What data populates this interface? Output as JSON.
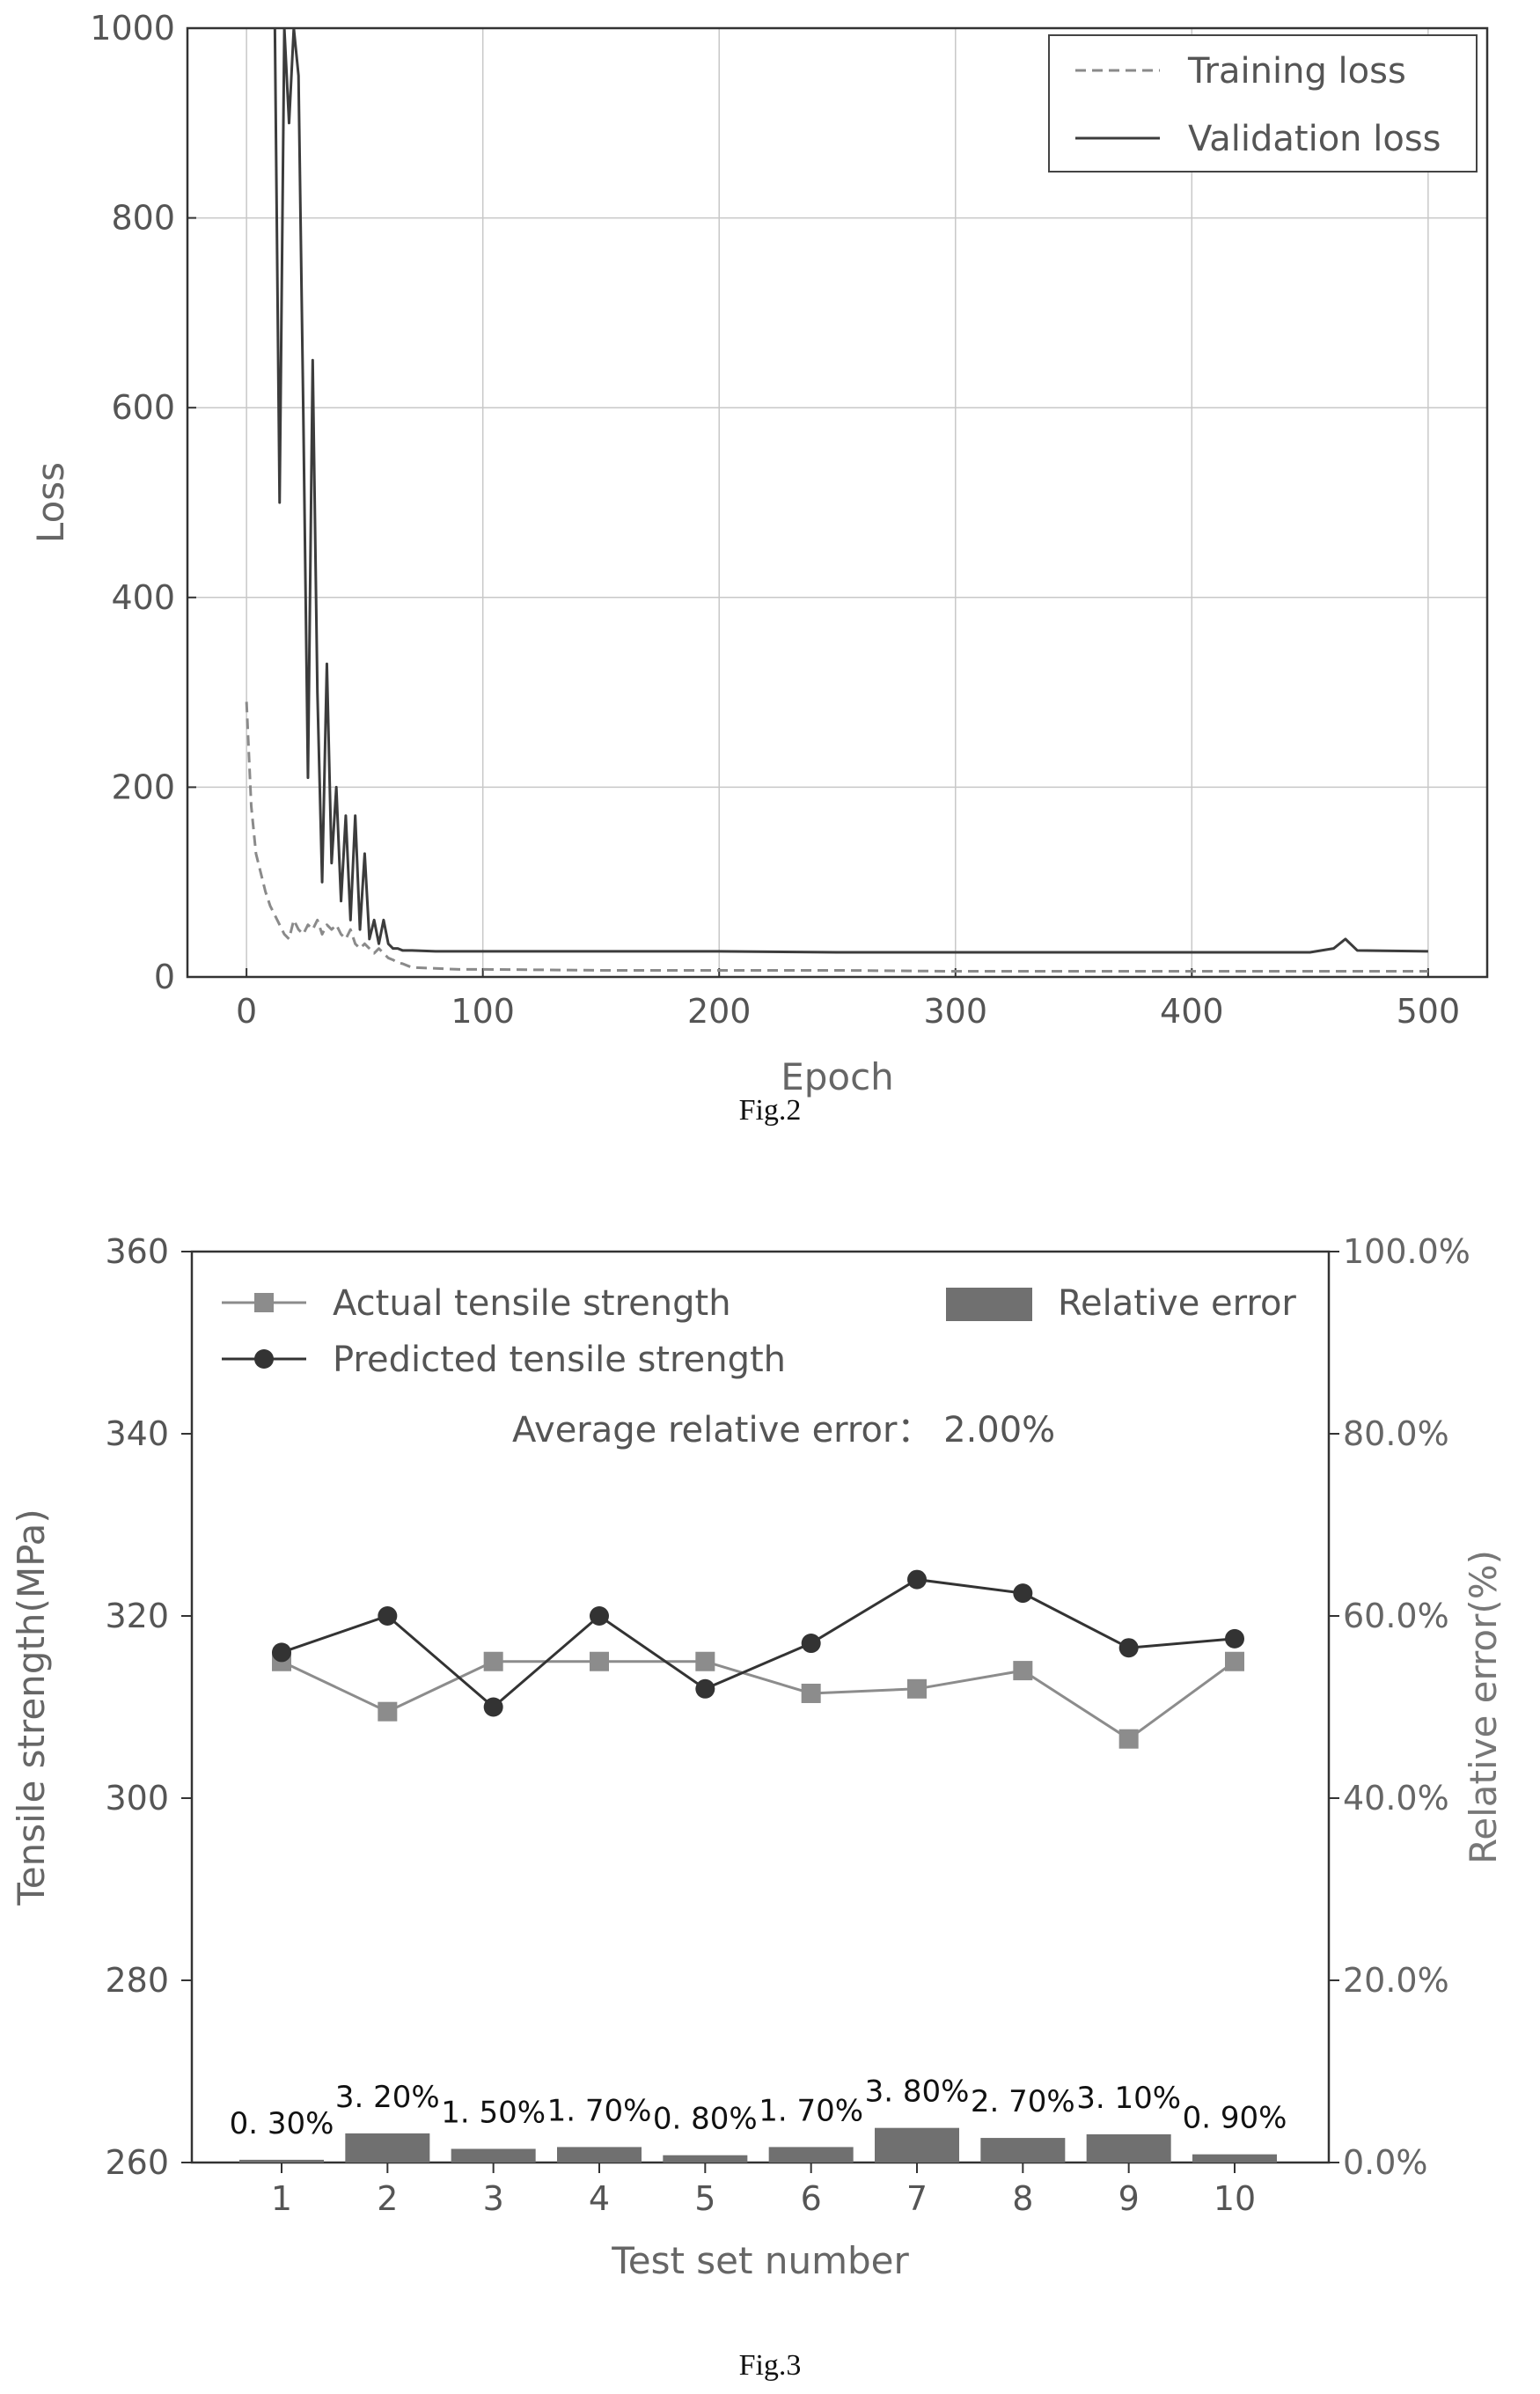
{
  "figures": [
    {
      "caption": "Fig.2",
      "chart_data": {
        "type": "line",
        "xlabel": "Epoch",
        "ylabel": "Loss",
        "xlim": [
          -25,
          525
        ],
        "ylim": [
          0,
          1000
        ],
        "xticks": [
          "0",
          "100",
          "200",
          "300",
          "400",
          "500"
        ],
        "yticks": [
          "0",
          "200",
          "400",
          "600",
          "800",
          "1000"
        ],
        "grid": true,
        "legend_position": "top-right",
        "series": [
          {
            "name": "Training loss",
            "style": "dashed",
            "color": "#8a8a8a",
            "x": [
              0,
              2,
              4,
              6,
              8,
              10,
              12,
              14,
              16,
              18,
              20,
              22,
              24,
              26,
              28,
              30,
              32,
              34,
              36,
              38,
              40,
              42,
              44,
              46,
              48,
              50,
              52,
              54,
              56,
              58,
              60,
              62,
              64,
              66,
              68,
              70,
              80,
              90,
              100,
              150,
              200,
              250,
              300,
              350,
              400,
              450,
              500
            ],
            "y": [
              290,
              180,
              130,
              110,
              90,
              75,
              65,
              55,
              45,
              40,
              60,
              50,
              45,
              55,
              50,
              60,
              45,
              55,
              50,
              55,
              45,
              40,
              50,
              35,
              30,
              35,
              30,
              25,
              30,
              25,
              20,
              18,
              15,
              14,
              12,
              10,
              9,
              8,
              8,
              7,
              7,
              7,
              6,
              6,
              6,
              6,
              6
            ]
          },
          {
            "name": "Validation loss",
            "style": "solid",
            "color": "#3c3c3c",
            "x": [
              12,
              14,
              16,
              18,
              20,
              22,
              24,
              26,
              28,
              30,
              32,
              34,
              36,
              38,
              40,
              42,
              44,
              46,
              48,
              50,
              52,
              54,
              56,
              58,
              60,
              62,
              64,
              66,
              68,
              70,
              80,
              90,
              100,
              150,
              200,
              250,
              300,
              350,
              400,
              450,
              460,
              465,
              470,
              500
            ],
            "y": [
              1000,
              500,
              1000,
              900,
              1000,
              950,
              600,
              210,
              650,
              300,
              100,
              330,
              120,
              200,
              80,
              170,
              60,
              170,
              50,
              130,
              40,
              60,
              35,
              60,
              35,
              30,
              30,
              28,
              28,
              28,
              27,
              27,
              27,
              27,
              27,
              26,
              26,
              26,
              26,
              26,
              30,
              40,
              28,
              27
            ]
          }
        ]
      }
    },
    {
      "caption": "Fig.3",
      "annotation": "Average relative error：  2.00%",
      "chart_data": {
        "type": "line",
        "xlabel": "Test set number",
        "ylabel": "Tensile strength(MPa)",
        "y2label": "Relative error(%)",
        "categories": [
          "1",
          "2",
          "3",
          "4",
          "5",
          "6",
          "7",
          "8",
          "9",
          "10"
        ],
        "ylim": [
          260,
          360
        ],
        "yticks": [
          "260",
          "280",
          "300",
          "320",
          "340",
          "360"
        ],
        "y2lim": [
          0,
          100
        ],
        "y2ticks": [
          "0.0%",
          "20.0%",
          "40.0%",
          "60.0%",
          "80.0%",
          "100.0%"
        ],
        "grid": false,
        "legend_position": "top",
        "series": [
          {
            "name": "Actual tensile strength",
            "axis": "left",
            "marker": "square",
            "color": "#8c8c8c",
            "values": [
              315,
              309.5,
              315,
              315,
              315,
              311.5,
              312,
              314,
              306.5,
              315
            ]
          },
          {
            "name": "Predicted tensile strength",
            "axis": "left",
            "marker": "circle",
            "color": "#333333",
            "values": [
              316,
              320,
              310,
              320,
              312,
              317,
              324,
              322.5,
              316.5,
              317.5
            ]
          },
          {
            "name": "Relative error",
            "axis": "right",
            "type": "bar",
            "color": "#707070",
            "values": [
              0.3,
              3.2,
              1.5,
              1.7,
              0.8,
              1.7,
              3.8,
              2.7,
              3.1,
              0.9
            ],
            "labels": [
              "0. 30%",
              "3. 20%",
              "1. 50%",
              "1. 70%",
              "0. 80%",
              "1. 70%",
              "3. 80%",
              "2. 70%",
              "3. 10%",
              "0. 90%"
            ]
          }
        ]
      }
    }
  ]
}
